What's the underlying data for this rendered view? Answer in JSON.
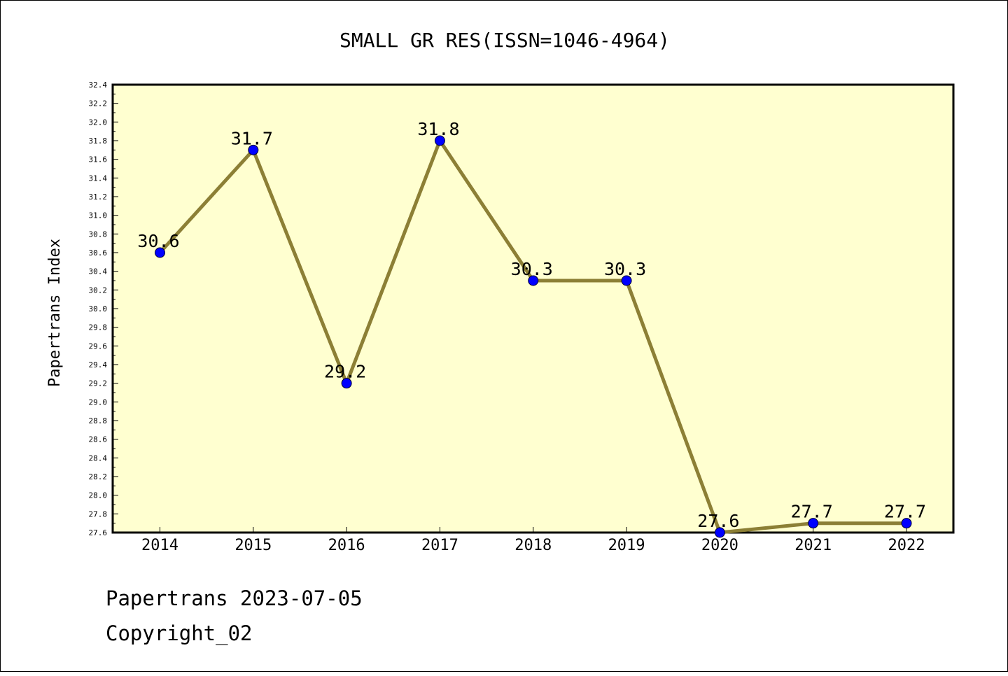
{
  "chart_data": {
    "type": "line",
    "title": "SMALL GR RES(ISSN=1046-4964)",
    "xlabel": "",
    "ylabel": "Papertrans Index",
    "categories": [
      "2014",
      "2015",
      "2016",
      "2017",
      "2018",
      "2019",
      "2020",
      "2021",
      "2022"
    ],
    "series": [
      {
        "values": [
          30.6,
          31.7,
          29.2,
          31.8,
          30.3,
          30.3,
          27.6,
          27.7,
          27.7
        ],
        "data_labels": [
          "30.6",
          "31.7",
          "29.2",
          "31.8",
          "30.3",
          "30.3",
          "27.6",
          "27.7",
          "27.7"
        ]
      }
    ],
    "ylim": [
      27.6,
      32.4
    ],
    "yticks": [
      "27.6",
      "27.8",
      "28.0",
      "28.2",
      "28.4",
      "28.6",
      "28.8",
      "29.0",
      "29.2",
      "29.4",
      "29.6",
      "29.8",
      "30.0",
      "30.2",
      "30.4",
      "30.6",
      "30.8",
      "31.0",
      "31.2",
      "31.4",
      "31.6",
      "31.8",
      "32.0",
      "32.2",
      "32.4"
    ],
    "grid": false,
    "legend": "none",
    "colors": {
      "plot_background": "#ffffd0",
      "line": "#8c7f35",
      "marker": "#0000ff",
      "axes": "#000000"
    }
  },
  "footer": {
    "line1": "Papertrans 2023-07-05",
    "line2": "Copyright_02"
  }
}
